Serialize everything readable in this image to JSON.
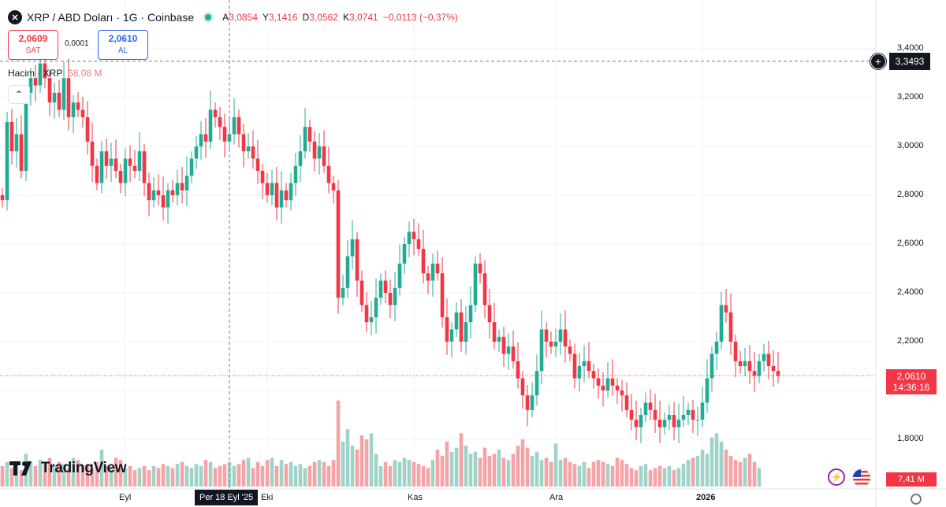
{
  "header": {
    "symbol_icon": "xrp-logo-icon",
    "title": "XRP / ABD Doları · 1G · Coinbase",
    "ohlc": {
      "o_label": "A",
      "o_value": "3,0854",
      "h_label": "Y",
      "h_value": "3,1416",
      "l_label": "D",
      "l_value": "3,0562",
      "c_label": "K",
      "c_value": "3,0741",
      "change": "−0,0113 (−0,37%)"
    }
  },
  "trade": {
    "sell_price": "2,0609",
    "sell_label": "SAT",
    "spread": "0,0001",
    "buy_price": "2,0610",
    "buy_label": "AL"
  },
  "volume_legend": {
    "label": "Hacim · XRP",
    "value": "68,08 M"
  },
  "collapse_icon": "chevron-up-icon",
  "logo_text": "TradingView",
  "crosshair": {
    "date_label": "Per 18 Eyl '25",
    "price_label": "3,3493"
  },
  "last_price": {
    "value": "2,0610",
    "countdown": "14:36:16"
  },
  "last_volume": "7,41 M",
  "colors": {
    "up": "#22ab94",
    "down": "#f23645",
    "vol_up": "#9fd3c8",
    "vol_down": "#f5a3a6"
  },
  "chart_data": {
    "type": "candlestick",
    "y_axis": {
      "ticks": [
        1.8,
        2.0,
        2.2,
        2.4,
        2.6,
        2.8,
        3.0,
        3.2,
        3.4
      ],
      "tick_labels": [
        "1,8000",
        "2,0000",
        "2,2000",
        "2,4000",
        "2,6000",
        "2,8000",
        "3,0000",
        "3,2000",
        "3,4000"
      ],
      "hidden_labels": [
        "2,0000"
      ],
      "range": [
        1.67,
        3.45
      ]
    },
    "x_axis": {
      "labels": [
        {
          "text": "Eyl",
          "index": 26,
          "bold": false
        },
        {
          "text": "Eki",
          "index": 56,
          "bold": false
        },
        {
          "text": "Kas",
          "index": 87,
          "bold": false
        },
        {
          "text": "Ara",
          "index": 117,
          "bold": false
        },
        {
          "text": "2026",
          "index": 148,
          "bold": true
        }
      ]
    },
    "closes": [
      2.78,
      3.1,
      2.98,
      3.05,
      2.9,
      3.22,
      3.28,
      3.25,
      3.34,
      3.28,
      3.18,
      3.22,
      3.15,
      3.28,
      3.12,
      3.18,
      3.15,
      3.12,
      3.02,
      2.92,
      2.85,
      2.98,
      2.92,
      2.95,
      2.9,
      2.85,
      2.95,
      2.92,
      2.9,
      2.98,
      2.85,
      2.78,
      2.82,
      2.8,
      2.75,
      2.82,
      2.8,
      2.85,
      2.82,
      2.88,
      2.95,
      3.0,
      3.05,
      3.02,
      3.15,
      3.12,
      3.08,
      3.02,
      3.05,
      3.12,
      3.05,
      2.98,
      3.0,
      2.95,
      2.9,
      2.85,
      2.8,
      2.85,
      2.75,
      2.82,
      2.78,
      2.85,
      2.92,
      2.98,
      3.08,
      3.02,
      2.95,
      3.0,
      2.92,
      2.85,
      2.82,
      2.38,
      2.42,
      2.55,
      2.62,
      2.45,
      2.35,
      2.28,
      2.3,
      2.38,
      2.45,
      2.4,
      2.35,
      2.42,
      2.52,
      2.6,
      2.65,
      2.62,
      2.58,
      2.48,
      2.45,
      2.52,
      2.48,
      2.3,
      2.2,
      2.25,
      2.32,
      2.2,
      2.28,
      2.35,
      2.52,
      2.48,
      2.35,
      2.28,
      2.2,
      2.22,
      2.15,
      2.18,
      2.12,
      2.05,
      1.98,
      1.92,
      1.98,
      2.08,
      2.25,
      2.2,
      2.18,
      2.2,
      2.25,
      2.18,
      2.15,
      2.05,
      2.1,
      2.12,
      2.08,
      2.05,
      2.02,
      2.0,
      2.05,
      2.02,
      2.0,
      1.98,
      1.92,
      1.88,
      1.85,
      1.9,
      1.95,
      1.92,
      1.88,
      1.85,
      1.88,
      1.9,
      1.85,
      1.88,
      1.9,
      1.92,
      1.88,
      1.88,
      1.95,
      2.05,
      2.15,
      2.2,
      2.35,
      2.32,
      2.2,
      2.12,
      2.1,
      2.12,
      2.08,
      2.06,
      2.12,
      2.15,
      2.1,
      2.08,
      2.06
    ],
    "volumes": [
      1.0,
      1.2,
      0.9,
      1.1,
      0.8,
      1.6,
      1.2,
      1.0,
      1.3,
      1.1,
      1.4,
      1.0,
      1.2,
      1.1,
      0.9,
      1.4,
      1.3,
      1.0,
      1.1,
      0.9,
      1.2,
      1.8,
      1.0,
      0.9,
      1.4,
      1.3,
      0.9,
      1.0,
      0.8,
      0.9,
      1.0,
      0.8,
      1.0,
      0.9,
      1.1,
      1.0,
      0.9,
      1.1,
      1.2,
      1.0,
      0.9,
      1.1,
      1.0,
      1.3,
      1.2,
      0.9,
      1.0,
      1.1,
      1.2,
      1.0,
      1.1,
      1.3,
      1.4,
      0.9,
      1.2,
      1.0,
      1.3,
      1.4,
      1.0,
      1.3,
      1.1,
      1.2,
      1.0,
      1.1,
      0.9,
      1.0,
      1.2,
      1.3,
      1.2,
      1.0,
      1.3,
      4.2,
      2.2,
      2.8,
      2.0,
      1.8,
      2.5,
      2.3,
      2.6,
      1.6,
      1.0,
      1.2,
      1.0,
      1.3,
      1.2,
      1.4,
      1.3,
      1.2,
      1.1,
      1.0,
      0.9,
      1.3,
      1.8,
      1.5,
      2.2,
      1.7,
      1.9,
      2.6,
      2.0,
      1.6,
      1.7,
      1.4,
      1.9,
      1.5,
      1.6,
      1.8,
      1.4,
      1.3,
      1.6,
      2.0,
      2.3,
      1.9,
      1.5,
      1.7,
      1.3,
      1.4,
      1.2,
      2.1,
      1.3,
      1.4,
      1.2,
      1.1,
      1.0,
      1.2,
      0.9,
      1.2,
      1.3,
      1.2,
      1.1,
      1.0,
      1.4,
      1.3,
      1.1,
      0.9,
      0.8,
      1.0,
      1.1,
      0.8,
      0.9,
      1.0,
      0.9,
      1.0,
      0.8,
      0.9,
      1.1,
      1.3,
      1.4,
      1.5,
      1.8,
      1.6,
      2.4,
      2.6,
      2.2,
      1.8,
      1.5,
      1.3,
      1.2,
      1.4,
      1.6,
      1.2,
      0.9
    ]
  }
}
